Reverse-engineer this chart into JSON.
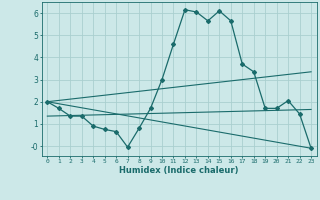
{
  "xlabel": "Humidex (Indice chaleur)",
  "background_color": "#cce8e8",
  "grid_color": "#aacfcf",
  "line_color": "#1a6b6b",
  "xlim": [
    -0.5,
    23.5
  ],
  "ylim": [
    -0.45,
    6.5
  ],
  "xticks": [
    0,
    1,
    2,
    3,
    4,
    5,
    6,
    7,
    8,
    9,
    10,
    11,
    12,
    13,
    14,
    15,
    16,
    17,
    18,
    19,
    20,
    21,
    22,
    23
  ],
  "yticks": [
    0,
    1,
    2,
    3,
    4,
    5,
    6
  ],
  "ytick_labels": [
    "-0",
    "1",
    "2",
    "3",
    "4",
    "5",
    "6"
  ],
  "main_curve_x": [
    0,
    1,
    2,
    3,
    4,
    5,
    6,
    7,
    8,
    9,
    10,
    11,
    12,
    13,
    14,
    15,
    16,
    17,
    18,
    19,
    20,
    21,
    22,
    23
  ],
  "main_curve_y": [
    2.0,
    1.7,
    1.35,
    1.35,
    0.9,
    0.75,
    0.65,
    -0.05,
    0.8,
    1.7,
    3.0,
    4.6,
    6.15,
    6.05,
    5.65,
    6.1,
    5.65,
    3.7,
    3.35,
    1.7,
    1.7,
    2.05,
    1.45,
    -0.1
  ],
  "line1_x": [
    0,
    23
  ],
  "line1_y": [
    2.0,
    3.35
  ],
  "line2_x": [
    0,
    23
  ],
  "line2_y": [
    2.0,
    -0.1
  ],
  "line3_x": [
    0,
    23
  ],
  "line3_y": [
    1.35,
    1.65
  ]
}
